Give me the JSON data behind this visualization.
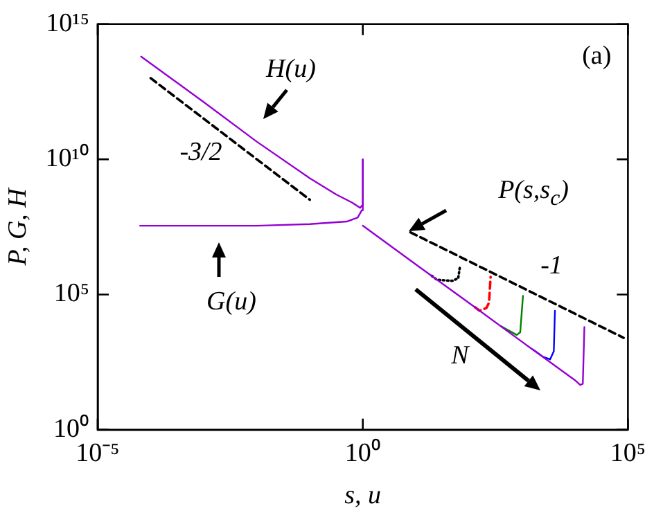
{
  "chart_data": {
    "type": "line",
    "xlabel": "s, u",
    "ylabel": "P, G, H",
    "log": "xy",
    "grid": false,
    "legend": false,
    "marker": "none",
    "xlim": [
      1e-05,
      100000.0
    ],
    "xticks": [
      {
        "value": 1e-05,
        "label": "10⁻⁵"
      },
      {
        "value": 1,
        "label": "10⁰"
      },
      {
        "value": 100000.0,
        "label": "10⁵"
      }
    ],
    "ylim": [
      1,
      1000000000000000.0
    ],
    "yticks": [
      {
        "value": 1,
        "label": "10⁰"
      },
      {
        "value": 100000.0,
        "label": "10⁵"
      },
      {
        "value": 10000000000.0,
        "label": "10¹⁰"
      },
      {
        "value": 1000000000000000.0,
        "label": "10¹⁵"
      }
    ],
    "series": [
      {
        "color": "#9400d3",
        "line_style": "solid",
        "x": [
          6.6e-05,
          0.001,
          0.01,
          0.1,
          0.316,
          0.631,
          0.891,
          0.977,
          1
        ],
        "values": [
          63000000000000.0,
          1300000000000.0,
          45000000000.0,
          2000000000.0,
          500000000.0,
          250000000.0,
          160000000.0,
          200000000.0,
          10000000000.0
        ]
      },
      {
        "color": "#9400d3",
        "line_style": "solid",
        "x": [
          6.3e-05,
          0.01,
          0.1,
          0.5,
          0.8,
          0.955,
          1
        ],
        "values": [
          35000000.0,
          35000000.0,
          40000000.0,
          50000000.0,
          70000000.0,
          130000000.0,
          10000000000.0
        ]
      },
      {
        "color": "#9400d3",
        "line_style": "solid",
        "x": [
          1,
          10,
          100,
          1000,
          10000,
          12600,
          14100,
          15100
        ],
        "values": [
          35000000.0,
          1300000.0,
          49000.0,
          1800.0,
          68,
          45,
          50,
          6300.0
        ]
      },
      {
        "color": "#0000ff",
        "line_style": "solid",
        "x": [
          1600,
          2500,
          3400,
          4000,
          4200
        ],
        "values": [
          940,
          500,
          400,
          800,
          25000.0
        ]
      },
      {
        "color": "#008000",
        "line_style": "solid",
        "x": [
          400,
          800,
          930,
          1050
        ],
        "values": [
          6800.0,
          3200.0,
          4000.0,
          89000.0
        ]
      },
      {
        "color": "#ff0000",
        "line_style": "dashed",
        "x": [
          130,
          160,
          215,
          240,
          257
        ],
        "values": [
          34000.0,
          25000.0,
          32000.0,
          50000.0,
          450000.0
        ]
      },
      {
        "color": "#000000",
        "line_style": "dotted",
        "x": [
          20,
          25,
          49,
          63,
          68
        ],
        "values": [
          490000.0,
          350000.0,
          320000.0,
          400000.0,
          1100000.0
        ]
      },
      {
        "color": "#000000",
        "line_style": "dashed",
        "x": [
          0.0001,
          0.1
        ],
        "values": [
          10000000000000.0,
          320000000.0
        ]
      },
      {
        "color": "#000000",
        "line_style": "dashed",
        "x": [
          7.9,
          83000
        ],
        "values": [
          20000000.0,
          2500.0
        ]
      }
    ],
    "annotations": [
      "(a)",
      "H(u)",
      "G(u)",
      "P(s,s$_{c}$)",
      "-3/2",
      "-1",
      "N"
    ]
  }
}
